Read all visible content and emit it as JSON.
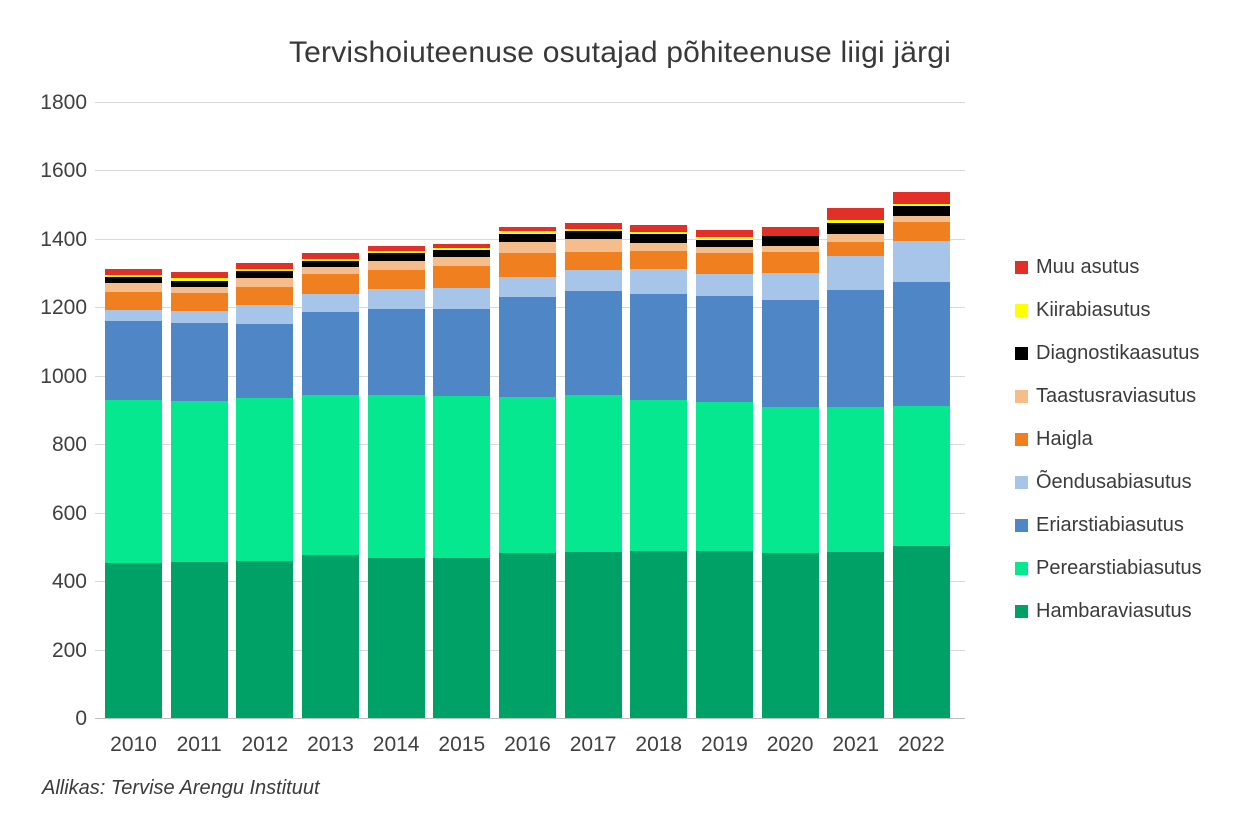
{
  "title": "Tervishoiuteenuse osutajad põhiteenuse liigi järgi",
  "source": "Allikas: Tervise Arengu Instituut",
  "chart_data": {
    "type": "bar",
    "stacked": true,
    "title": "Tervishoiuteenuse osutajad põhiteenuse liigi järgi",
    "xlabel": "",
    "ylabel": "",
    "ylim": [
      0,
      1800
    ],
    "yticks": [
      0,
      200,
      400,
      600,
      800,
      1000,
      1200,
      1400,
      1600,
      1800
    ],
    "grid": true,
    "legend_position": "right",
    "legend_order_top_to_bottom": [
      "Muu asutus",
      "Kiirabiasutus",
      "Diagnostikaasutus",
      "Taastusraviasutus",
      "Haigla",
      "Õendusabiasutus",
      "Eriarstiabiasutus",
      "Perearstiabiasutus",
      "Hambaraviasutus"
    ],
    "categories": [
      "2010",
      "2011",
      "2012",
      "2013",
      "2014",
      "2015",
      "2016",
      "2017",
      "2018",
      "2019",
      "2020",
      "2021",
      "2022"
    ],
    "series": [
      {
        "name": "Hambaraviasutus",
        "color": "#00a167",
        "values": [
          453,
          457,
          460,
          476,
          469,
          469,
          482,
          486,
          489,
          489,
          482,
          484,
          502
        ]
      },
      {
        "name": "Perearstiabiasutus",
        "color": "#05e88f",
        "values": [
          476,
          468,
          475,
          469,
          476,
          473,
          457,
          459,
          440,
          433,
          428,
          426,
          411
        ]
      },
      {
        "name": "Eriarstiabiasutus",
        "color": "#4e86c6",
        "values": [
          232,
          228,
          216,
          241,
          250,
          253,
          290,
          304,
          311,
          310,
          312,
          340,
          360
        ]
      },
      {
        "name": "Õendusabiasutus",
        "color": "#a6c5e8",
        "values": [
          31,
          35,
          57,
          54,
          58,
          62,
          59,
          60,
          72,
          65,
          78,
          99,
          121
        ]
      },
      {
        "name": "Haigla",
        "color": "#f0801f",
        "values": [
          54,
          54,
          51,
          57,
          56,
          65,
          70,
          52,
          52,
          62,
          63,
          43,
          56
        ]
      },
      {
        "name": "Taastusraviasutus",
        "color": "#f6bd8b",
        "values": [
          25,
          19,
          27,
          20,
          27,
          26,
          32,
          39,
          23,
          17,
          17,
          22,
          16
        ]
      },
      {
        "name": "Diagnostikaasutus",
        "color": "#000000",
        "values": [
          18,
          17,
          21,
          19,
          22,
          20,
          24,
          22,
          28,
          21,
          28,
          34,
          29
        ]
      },
      {
        "name": "Kiirabiasutus",
        "color": "#ffff00",
        "values": [
          6,
          7,
          5,
          5,
          6,
          7,
          8,
          7,
          4,
          8,
          2,
          6,
          7
        ]
      },
      {
        "name": "Muu asutus",
        "color": "#e23028",
        "values": [
          18,
          19,
          17,
          17,
          14,
          10,
          14,
          17,
          22,
          22,
          24,
          36,
          36
        ]
      }
    ],
    "totals": [
      1313,
      1304,
      1329,
      1358,
      1378,
      1385,
      1436,
      1446,
      1441,
      1427,
      1434,
      1490,
      1538
    ]
  }
}
